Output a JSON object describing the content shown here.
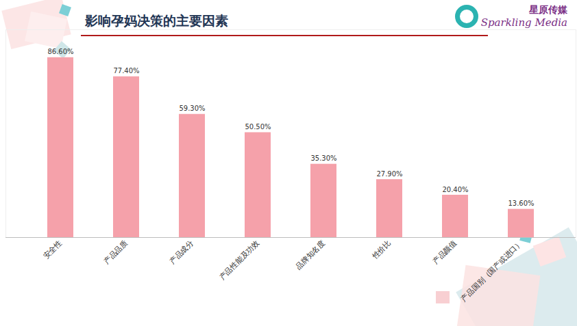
{
  "chart_data": {
    "type": "bar",
    "title": "影响孕妈决策的主要因素",
    "annotations": [
      "星原传媒",
      "Sparkling Media"
    ],
    "categories": [
      "安全性",
      "产品品质",
      "产品成分",
      "产品性能及功效",
      "品牌知名度",
      "性价比",
      "产品颜值",
      "产品国别（国产或进口）"
    ],
    "values": [
      86.6,
      77.4,
      59.3,
      50.5,
      35.3,
      27.9,
      20.4,
      13.6
    ],
    "value_labels": [
      "86.60%",
      "77.40%",
      "59.30%",
      "50.50%",
      "35.30%",
      "27.90%",
      "20.40%",
      "13.60%"
    ],
    "color": "#f5a1aa",
    "ylim": [
      0,
      100
    ],
    "data_labels": true,
    "tick_labels": "x"
  }
}
